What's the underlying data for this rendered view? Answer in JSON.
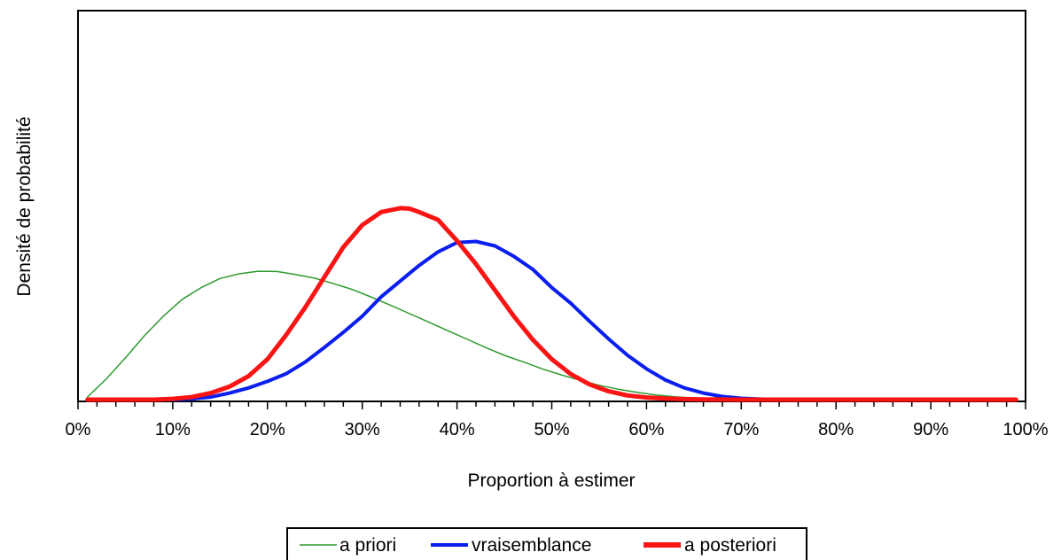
{
  "chart_data": {
    "type": "line",
    "title": "",
    "xlabel": "Proportion à estimer",
    "ylabel": "Densité de probabilité",
    "xlim": [
      0,
      100
    ],
    "ylim": [
      0,
      1
    ],
    "x_unit": "%",
    "y_ticks_shown": false,
    "grid": false,
    "legend_position": "bottom",
    "x_ticks": [
      {
        "value": 0,
        "label": "0%"
      },
      {
        "value": 10,
        "label": "10%"
      },
      {
        "value": 20,
        "label": "20%"
      },
      {
        "value": 30,
        "label": "30%"
      },
      {
        "value": 40,
        "label": "40%"
      },
      {
        "value": 50,
        "label": "50%"
      },
      {
        "value": 60,
        "label": "60%"
      },
      {
        "value": 70,
        "label": "70%"
      },
      {
        "value": 80,
        "label": "80%"
      },
      {
        "value": 90,
        "label": "90%"
      },
      {
        "value": 100,
        "label": "100%"
      }
    ],
    "series": [
      {
        "name": "a priori",
        "color": "#2e9a2e",
        "width": 1.5,
        "x": [
          1,
          3,
          5,
          7,
          9,
          11,
          13,
          15,
          17,
          19,
          21,
          23,
          25,
          27,
          29,
          31,
          33,
          35,
          37,
          39,
          41,
          43,
          45,
          47,
          49,
          51,
          53,
          55,
          57,
          59,
          61,
          63,
          65,
          67,
          69,
          71,
          75,
          80,
          90,
          99
        ],
        "y": [
          0.01,
          0.08,
          0.16,
          0.245,
          0.32,
          0.385,
          0.43,
          0.465,
          0.483,
          0.493,
          0.492,
          0.48,
          0.466,
          0.445,
          0.422,
          0.393,
          0.362,
          0.33,
          0.298,
          0.265,
          0.233,
          0.2,
          0.17,
          0.145,
          0.118,
          0.095,
          0.074,
          0.055,
          0.04,
          0.028,
          0.018,
          0.011,
          0.006,
          0.003,
          0.002,
          0.001,
          0.0,
          0.0,
          0.0,
          0.0
        ]
      },
      {
        "name": "vraisemblance",
        "color": "#0a1ef0",
        "width": 4,
        "x": [
          1,
          10,
          12,
          14,
          16,
          18,
          20,
          22,
          24,
          26,
          28,
          30,
          32,
          34,
          36,
          38,
          40,
          42,
          44,
          46,
          48,
          50,
          52,
          54,
          56,
          58,
          60,
          62,
          64,
          66,
          68,
          70,
          72,
          74,
          80,
          90,
          99
        ],
        "y": [
          0.0,
          0.0,
          0.003,
          0.01,
          0.025,
          0.045,
          0.07,
          0.1,
          0.145,
          0.2,
          0.258,
          0.32,
          0.395,
          0.455,
          0.515,
          0.567,
          0.603,
          0.607,
          0.59,
          0.55,
          0.5,
          0.43,
          0.37,
          0.3,
          0.233,
          0.17,
          0.118,
          0.075,
          0.045,
          0.025,
          0.012,
          0.005,
          0.002,
          0.0,
          0.0,
          0.0,
          0.0
        ]
      },
      {
        "name": "a posteriori",
        "color": "#fa1414",
        "width": 5,
        "x": [
          1,
          8,
          10,
          12,
          14,
          16,
          18,
          20,
          22,
          24,
          26,
          28,
          30,
          32,
          34,
          35,
          36,
          38,
          40,
          42,
          44,
          46,
          48,
          50,
          52,
          54,
          56,
          58,
          60,
          62,
          64,
          66,
          70,
          75,
          80,
          90,
          99
        ],
        "y": [
          0.0,
          0.0,
          0.003,
          0.01,
          0.025,
          0.05,
          0.09,
          0.155,
          0.25,
          0.355,
          0.47,
          0.585,
          0.67,
          0.72,
          0.735,
          0.733,
          0.72,
          0.69,
          0.61,
          0.52,
          0.42,
          0.32,
          0.23,
          0.155,
          0.098,
          0.058,
          0.032,
          0.016,
          0.008,
          0.004,
          0.002,
          0.001,
          0.0,
          0.0,
          0.0,
          0.0,
          0.0
        ]
      }
    ]
  }
}
